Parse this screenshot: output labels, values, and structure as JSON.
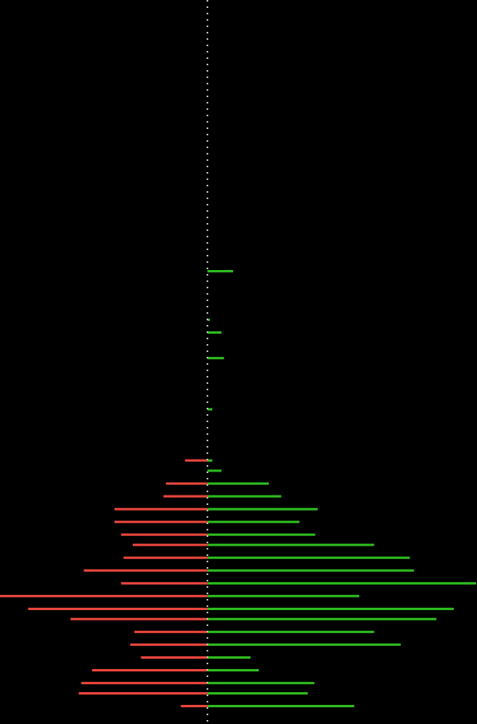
{
  "chart_data": {
    "type": "bar",
    "orientation": "horizontal",
    "style": "diverging butterfly bars around a dotted center axis",
    "title": "",
    "xlabel": "",
    "ylabel": "",
    "background": "#000000",
    "axis_line": {
      "style": "dotted",
      "color": "#c9c9c9"
    },
    "grid": false,
    "legend": "none",
    "xlim": [
      -250,
      325
    ],
    "ylim": [
      0,
      56.6
    ],
    "series": [
      {
        "color": "#2dba1e",
        "side": "right",
        "points": [
          {
            "y": 21.2,
            "value": 31
          },
          {
            "y": 25.0,
            "value": 3
          },
          {
            "y": 26.0,
            "value": 17
          },
          {
            "y": 28.0,
            "value": 20
          },
          {
            "y": 32.0,
            "value": 6
          },
          {
            "y": 36.0,
            "value": 6
          },
          {
            "y": 36.8,
            "value": 17
          },
          {
            "y": 37.8,
            "value": 74
          },
          {
            "y": 38.8,
            "value": 89
          },
          {
            "y": 39.8,
            "value": 133
          },
          {
            "y": 40.8,
            "value": 111
          },
          {
            "y": 41.8,
            "value": 130
          },
          {
            "y": 42.6,
            "value": 201
          },
          {
            "y": 43.6,
            "value": 244
          },
          {
            "y": 44.6,
            "value": 249
          },
          {
            "y": 45.6,
            "value": 324
          },
          {
            "y": 46.6,
            "value": 183
          },
          {
            "y": 47.6,
            "value": 297
          },
          {
            "y": 48.4,
            "value": 276
          },
          {
            "y": 49.4,
            "value": 201
          },
          {
            "y": 50.4,
            "value": 233
          },
          {
            "y": 51.4,
            "value": 52
          },
          {
            "y": 52.4,
            "value": 62
          },
          {
            "y": 53.4,
            "value": 129
          },
          {
            "y": 54.2,
            "value": 121
          },
          {
            "y": 55.2,
            "value": 177
          }
        ]
      },
      {
        "color": "#e8453c",
        "side": "left",
        "points": [
          {
            "y": 36.0,
            "value": 27
          },
          {
            "y": 37.8,
            "value": 50
          },
          {
            "y": 38.8,
            "value": 53
          },
          {
            "y": 39.8,
            "value": 112
          },
          {
            "y": 40.8,
            "value": 112
          },
          {
            "y": 41.8,
            "value": 104
          },
          {
            "y": 42.6,
            "value": 90
          },
          {
            "y": 43.6,
            "value": 101
          },
          {
            "y": 44.6,
            "value": 149
          },
          {
            "y": 45.6,
            "value": 104
          },
          {
            "y": 46.6,
            "value": 250
          },
          {
            "y": 47.6,
            "value": 216
          },
          {
            "y": 48.4,
            "value": 165
          },
          {
            "y": 49.4,
            "value": 88
          },
          {
            "y": 50.4,
            "value": 93
          },
          {
            "y": 51.4,
            "value": 80
          },
          {
            "y": 52.4,
            "value": 139
          },
          {
            "y": 53.4,
            "value": 152
          },
          {
            "y": 54.2,
            "value": 155
          },
          {
            "y": 55.2,
            "value": 32
          }
        ]
      }
    ]
  }
}
